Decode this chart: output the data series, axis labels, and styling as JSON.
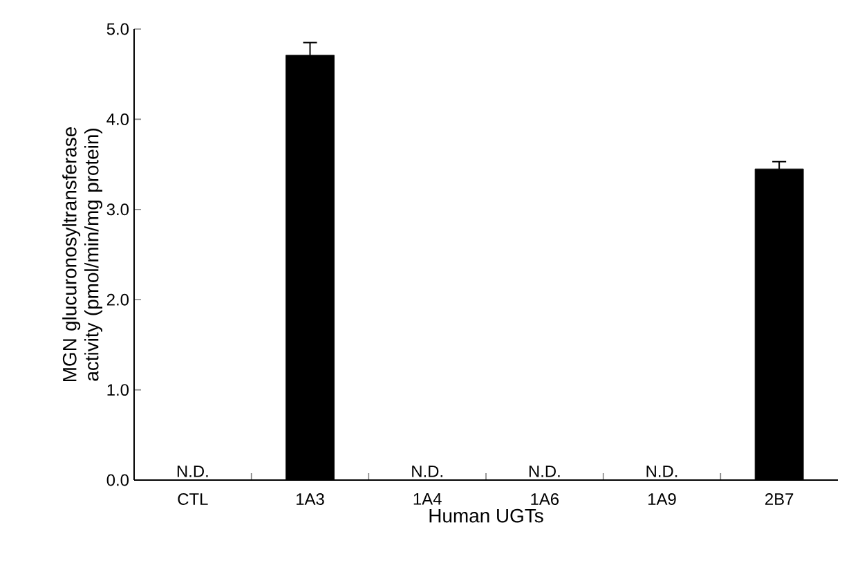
{
  "chart_data": {
    "type": "bar",
    "xlabel": "Human UGTs",
    "ylabel": "MGN glucuronosyltransferase activity (pmol/min/mg protein)",
    "categories": [
      "CTL",
      "1A3",
      "1A4",
      "1A6",
      "1A9",
      "2B7"
    ],
    "values": [
      null,
      4.71,
      null,
      null,
      null,
      3.45
    ],
    "errors": [
      null,
      0.14,
      null,
      null,
      null,
      0.08
    ],
    "value_labels": [
      "N.D.",
      null,
      "N.D.",
      "N.D.",
      "N.D.",
      null
    ],
    "color": "#000000",
    "ylim": [
      0,
      5
    ],
    "yticks": [
      {
        "value": 0,
        "label": "0.0"
      },
      {
        "value": 1,
        "label": "1.0"
      },
      {
        "value": 2,
        "label": "2.0"
      },
      {
        "value": 3,
        "label": "3.0"
      },
      {
        "value": 4,
        "label": "4.0"
      },
      {
        "value": 5,
        "label": "5.0"
      }
    ]
  }
}
